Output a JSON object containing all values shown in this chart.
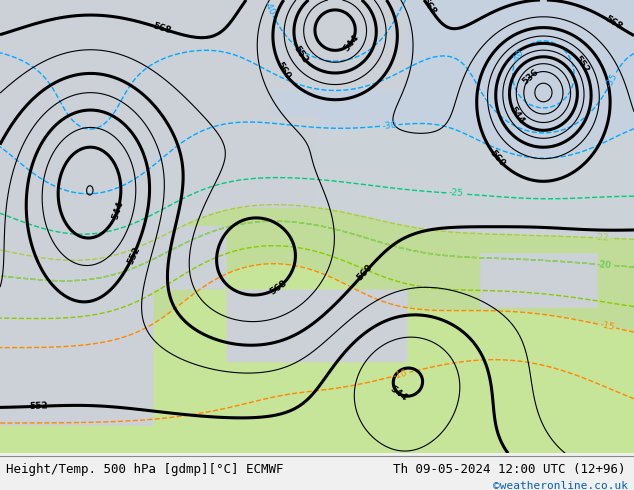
{
  "title_left": "Height/Temp. 500 hPa [gdmp][°C] ECMWF",
  "title_right": "Th 09-05-2024 12:00 UTC (12+96)",
  "credit": "©weatheronline.co.uk",
  "fig_width": 6.34,
  "fig_height": 4.9,
  "dpi": 100,
  "bottom_bar_color": "#f0f0f0",
  "title_fontsize": 9,
  "credit_fontsize": 8,
  "credit_color": "#0060c0",
  "ocean_color": "#d0d8e0",
  "land_color": "#c8e0a0",
  "grey_land_color": "#b8b8b8",
  "bg_map_color": "#d4dce4"
}
